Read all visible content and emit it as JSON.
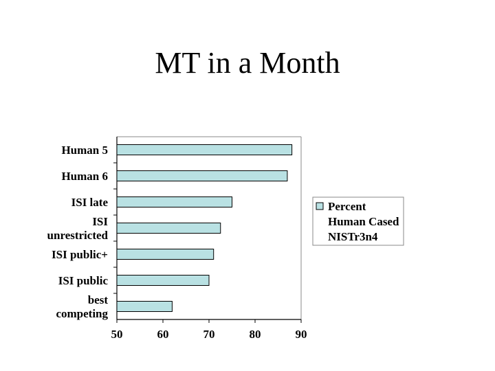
{
  "slide": {
    "title": "MT in a Month"
  },
  "chart_data": {
    "type": "bar",
    "orientation": "horizontal",
    "categories": [
      "Human 5",
      "Human 6",
      "ISI late",
      "ISI unrestricted",
      "ISI public+",
      "ISI public",
      "best competing"
    ],
    "category_lines": [
      [
        "Human 5"
      ],
      [
        "Human 6"
      ],
      [
        "ISI late"
      ],
      [
        "ISI",
        "unrestricted"
      ],
      [
        "ISI public+"
      ],
      [
        "ISI public"
      ],
      [
        "best",
        "competing"
      ]
    ],
    "series": [
      {
        "name": "Percent Human Cased NISTr3n4",
        "name_lines": [
          "Percent",
          "Human Cased",
          "NISTr3n4"
        ],
        "values": [
          88,
          87,
          75,
          72.5,
          71,
          70,
          62
        ]
      }
    ],
    "xlim": [
      50,
      90
    ],
    "xticks": [
      50,
      60,
      70,
      80,
      90
    ],
    "legend_position": "right",
    "grid": false,
    "colors": {
      "bar_fill": "#b9e1e3",
      "bar_stroke": "#000000",
      "axis": "#000000"
    }
  }
}
